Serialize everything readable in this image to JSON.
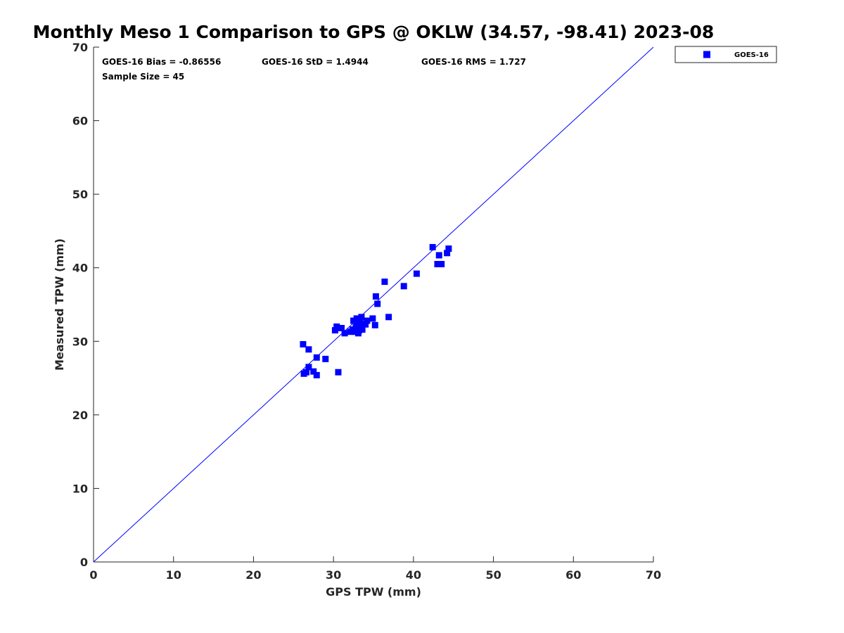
{
  "chart_data": {
    "type": "scatter",
    "title": "Monthly Meso 1 Comparison to GPS @ OKLW (34.57, -98.41) 2023-08",
    "xlabel": "GPS TPW (mm)",
    "ylabel": "Measured TPW (mm)",
    "xlim": [
      0,
      70
    ],
    "ylim": [
      0,
      70
    ],
    "xticks": [
      0,
      10,
      20,
      30,
      40,
      50,
      60,
      70
    ],
    "yticks": [
      0,
      10,
      20,
      30,
      40,
      50,
      60,
      70
    ],
    "grid": false,
    "reference_line": {
      "name": "1:1 line",
      "x": [
        0,
        70
      ],
      "y": [
        0,
        70
      ],
      "color": "#0000ff"
    },
    "stats": {
      "bias": "GOES-16 Bias = -0.86556",
      "std": "GOES-16 StD = 1.4944",
      "rms": "GOES-16 RMS = 1.727",
      "sample": "Sample Size = 45"
    },
    "legend": {
      "position": "top-right-outside",
      "entries": [
        "GOES-16"
      ]
    },
    "series": [
      {
        "name": "GOES-16",
        "color": "#0000ff",
        "marker": "square",
        "x": [
          26.2,
          26.3,
          26.6,
          26.9,
          26.9,
          27.5,
          27.9,
          27.9,
          29.0,
          30.2,
          30.4,
          30.6,
          31.0,
          31.4,
          32.1,
          32.4,
          32.5,
          32.7,
          32.9,
          32.9,
          33.0,
          33.1,
          33.2,
          33.3,
          33.5,
          33.6,
          33.6,
          34.2,
          34.9,
          35.2,
          35.3,
          35.5,
          36.4,
          36.9,
          38.8,
          40.4,
          42.4,
          43.0,
          43.2,
          43.5,
          44.2,
          44.4,
          32.8,
          33.4,
          34.0
        ],
        "y": [
          29.6,
          25.6,
          25.8,
          26.5,
          28.9,
          25.9,
          25.4,
          27.8,
          27.6,
          31.5,
          32.0,
          25.8,
          31.8,
          31.1,
          31.3,
          31.6,
          32.8,
          31.3,
          33.1,
          32.0,
          32.5,
          31.1,
          31.5,
          32.7,
          33.3,
          32.4,
          31.6,
          32.8,
          33.1,
          32.2,
          36.1,
          35.1,
          38.1,
          33.3,
          37.5,
          39.2,
          42.8,
          40.5,
          41.7,
          40.5,
          42.0,
          42.6,
          31.9,
          31.8,
          32.3
        ]
      }
    ]
  }
}
